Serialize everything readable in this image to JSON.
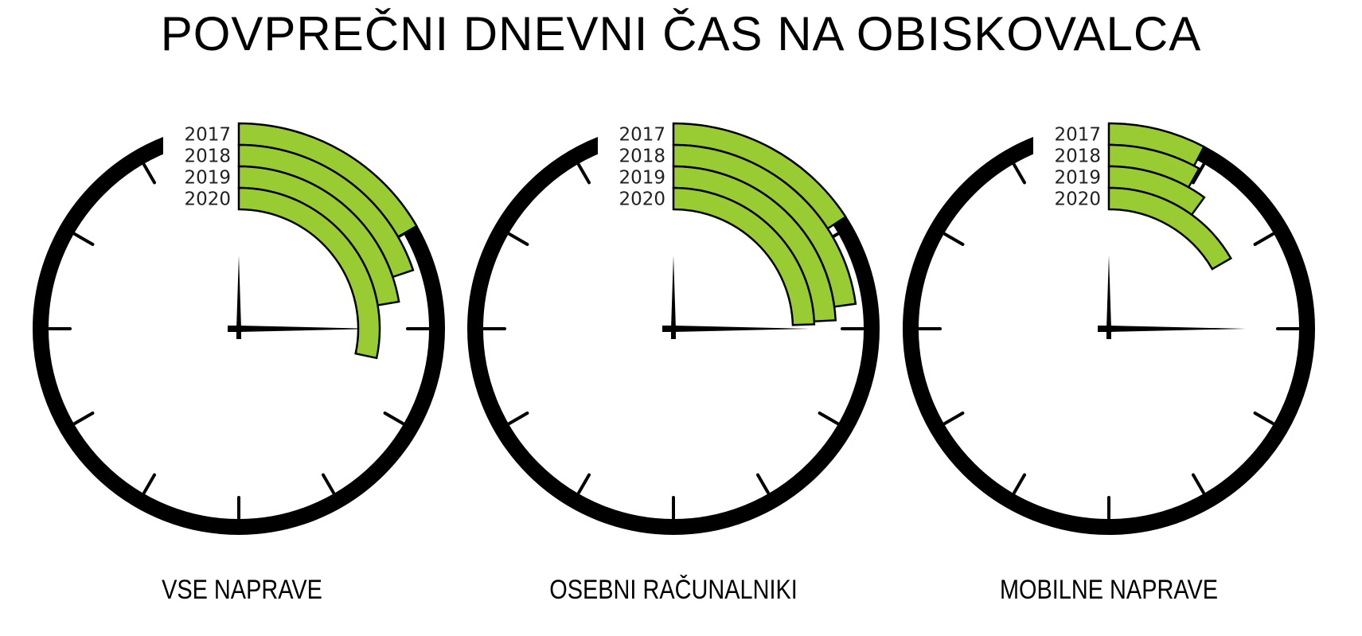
{
  "chart_data": {
    "type": "radial-bar",
    "title": "POVPREČNI DNEVNI ČAS NA OBISKOVALCA",
    "unit": "minutes (clock face, 60 per full circle)",
    "categories": [
      "2017",
      "2018",
      "2019",
      "2020"
    ],
    "charts": [
      {
        "label": "VSE NAPRAVE",
        "values": [
          10.0,
          11.9,
          13.4,
          17.0
        ]
      },
      {
        "label": "OSEBNI RAČUNALNIKI",
        "values": [
          9.5,
          13.7,
          14.5,
          14.7
        ]
      },
      {
        "label": "MOBILNE NAPRAVE",
        "values": [
          4.6,
          4.9,
          6.0,
          10.0
        ]
      }
    ],
    "full_scale": 60,
    "colors": {
      "bar": "#99cc33",
      "outline": "#000000",
      "clock": "#000000"
    }
  }
}
